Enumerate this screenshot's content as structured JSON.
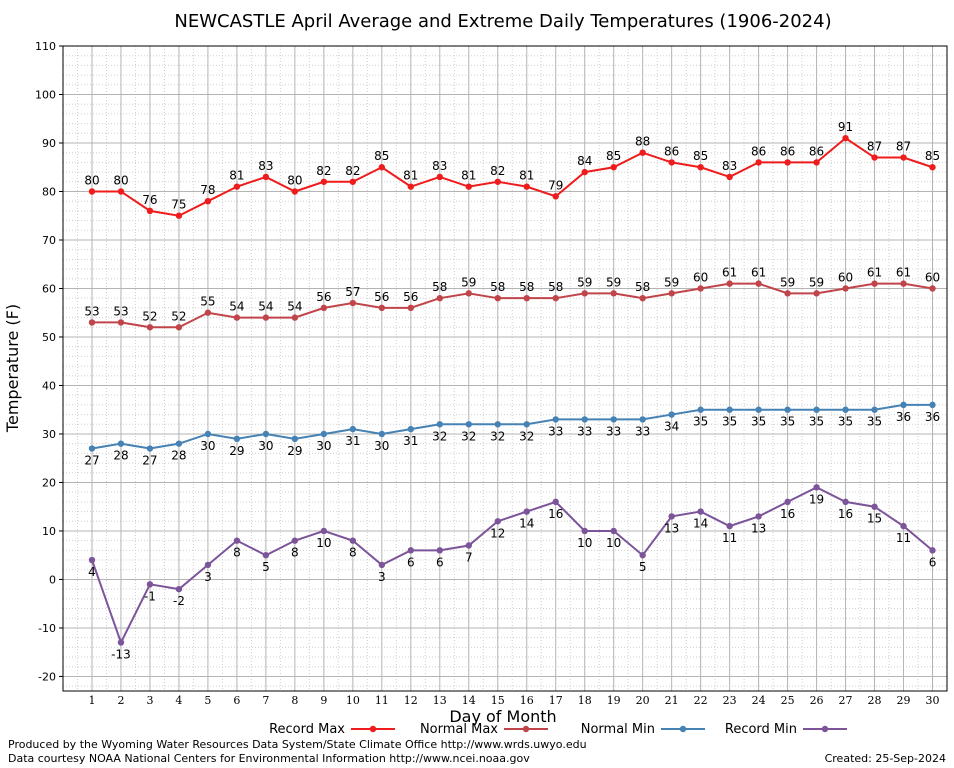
{
  "chart_data": {
    "type": "line",
    "title": "NEWCASTLE April Average and Extreme Daily Temperatures (1906-2024)",
    "xlabel": "Day of Month",
    "ylabel": "Temperature (F)",
    "xlim": [
      1,
      30
    ],
    "ylim": [
      -23,
      110
    ],
    "y_ticks": [
      -20,
      -10,
      0,
      10,
      20,
      30,
      40,
      50,
      60,
      70,
      80,
      90,
      100,
      110
    ],
    "x": [
      1,
      2,
      3,
      4,
      5,
      6,
      7,
      8,
      9,
      10,
      11,
      12,
      13,
      14,
      15,
      16,
      17,
      18,
      19,
      20,
      21,
      22,
      23,
      24,
      25,
      26,
      27,
      28,
      29,
      30
    ],
    "grid": true,
    "legend_position": "bottom",
    "series": [
      {
        "name": "Record Max",
        "color": "#ee1c1c",
        "label_position": "above",
        "values": [
          80,
          80,
          76,
          75,
          78,
          81,
          83,
          80,
          82,
          82,
          85,
          81,
          83,
          81,
          82,
          81,
          79,
          84,
          85,
          88,
          86,
          85,
          83,
          86,
          86,
          86,
          91,
          87,
          87,
          85
        ]
      },
      {
        "name": "Normal Max",
        "color": "#c0454a",
        "label_position": "above",
        "values": [
          53,
          53,
          52,
          52,
          55,
          54,
          54,
          54,
          56,
          57,
          56,
          56,
          58,
          59,
          58,
          58,
          58,
          59,
          59,
          58,
          59,
          60,
          61,
          61,
          59,
          59,
          60,
          61,
          61,
          60
        ]
      },
      {
        "name": "Normal Min",
        "color": "#4682b4",
        "label_position": "below",
        "values": [
          27,
          28,
          27,
          28,
          30,
          29,
          30,
          29,
          30,
          31,
          30,
          31,
          32,
          32,
          32,
          32,
          33,
          33,
          33,
          33,
          34,
          35,
          35,
          35,
          35,
          35,
          35,
          35,
          36,
          36
        ]
      },
      {
        "name": "Record Min",
        "color": "#7b5499",
        "label_position": "below",
        "values": [
          4,
          -13,
          -1,
          -2,
          3,
          8,
          5,
          8,
          10,
          8,
          3,
          6,
          6,
          7,
          12,
          14,
          16,
          10,
          10,
          5,
          13,
          14,
          11,
          13,
          16,
          19,
          16,
          15,
          11,
          6
        ]
      }
    ]
  },
  "footer": {
    "produced_by": "Produced by the Wyoming Water Resources Data System/State Climate Office http://www.wrds.uwyo.edu",
    "data_courtesy": "Data courtesy NOAA National Centers for Environmental Information http://www.ncei.noaa.gov",
    "created": "Created:  25-Sep-2024"
  }
}
